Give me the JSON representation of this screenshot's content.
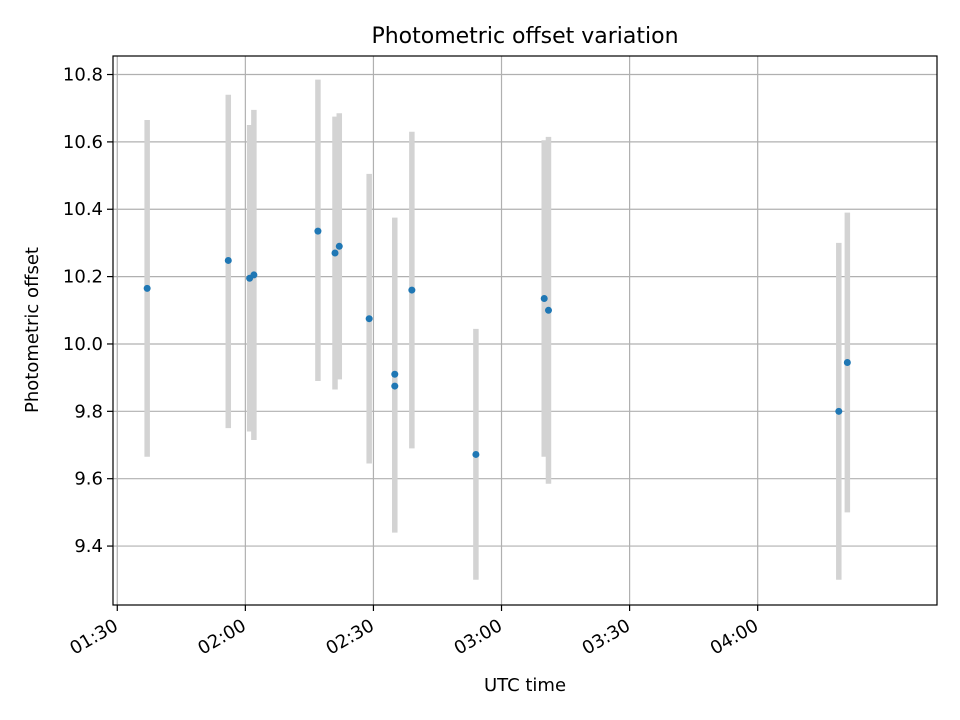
{
  "chart_data": {
    "type": "scatter",
    "title": "Photometric offset variation",
    "xlabel": "UTC time",
    "ylabel": "Photometric offset",
    "grid": true,
    "xlim": [
      "01:29",
      "04:42"
    ],
    "ylim": [
      9.225,
      10.855
    ],
    "x_ticks": [
      "01:30",
      "02:00",
      "02:30",
      "03:00",
      "03:30",
      "04:00"
    ],
    "y_ticks": [
      9.4,
      9.6,
      9.8,
      10.0,
      10.2,
      10.4,
      10.6,
      10.8
    ],
    "y_tick_labels": [
      "9.4",
      "9.6",
      "9.8",
      "10.0",
      "10.2",
      "10.4",
      "10.6",
      "10.8"
    ],
    "marker_color": "#1f77b4",
    "errorbar_color": "#d3d3d3",
    "points": [
      {
        "x": "01:37",
        "y": 10.165,
        "ylow": 9.665,
        "yhigh": 10.665
      },
      {
        "x": "01:56",
        "y": 10.248,
        "ylow": 9.75,
        "yhigh": 10.74
      },
      {
        "x": "02:01",
        "y": 10.195,
        "ylow": 9.74,
        "yhigh": 10.65
      },
      {
        "x": "02:02",
        "y": 10.205,
        "ylow": 9.715,
        "yhigh": 10.695
      },
      {
        "x": "02:17",
        "y": 10.335,
        "ylow": 9.89,
        "yhigh": 10.785
      },
      {
        "x": "02:21",
        "y": 10.27,
        "ylow": 9.865,
        "yhigh": 10.675
      },
      {
        "x": "02:22",
        "y": 10.29,
        "ylow": 9.895,
        "yhigh": 10.685
      },
      {
        "x": "02:29",
        "y": 10.075,
        "ylow": 9.645,
        "yhigh": 10.505
      },
      {
        "x": "02:35",
        "y": 9.875,
        "ylow": 9.44,
        "yhigh": 10.31
      },
      {
        "x": "02:35",
        "y": 9.91,
        "ylow": 9.445,
        "yhigh": 10.375
      },
      {
        "x": "02:39",
        "y": 10.16,
        "ylow": 9.69,
        "yhigh": 10.63
      },
      {
        "x": "02:54",
        "y": 9.672,
        "ylow": 9.3,
        "yhigh": 10.045
      },
      {
        "x": "03:10",
        "y": 10.135,
        "ylow": 9.665,
        "yhigh": 10.605
      },
      {
        "x": "03:11",
        "y": 10.1,
        "ylow": 9.585,
        "yhigh": 10.615
      },
      {
        "x": "04:19",
        "y": 9.8,
        "ylow": 9.3,
        "yhigh": 10.3
      },
      {
        "x": "04:21",
        "y": 9.945,
        "ylow": 9.5,
        "yhigh": 10.39
      }
    ]
  }
}
